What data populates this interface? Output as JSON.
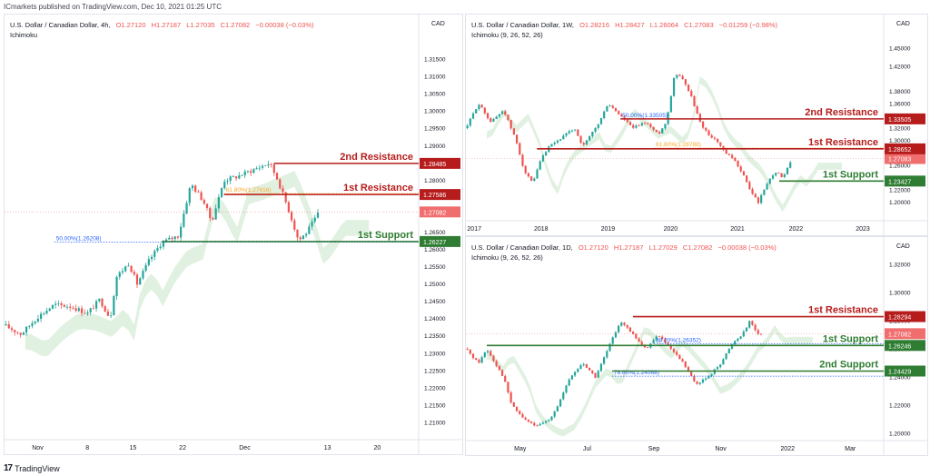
{
  "header": {
    "text": "ICmarkets published on TradingView.com, Dec 10, 2021 01:25 UTC"
  },
  "footer": {
    "brand": "TradingView",
    "logo_glyph": "17"
  },
  "colors": {
    "up": "#26a69a",
    "down": "#ef5350",
    "resistance": "#b71c1c",
    "support": "#2e7d32",
    "cloud_up": "#c8e6c9",
    "cloud_down": "#ffcdd2",
    "fib": "#2962ff",
    "fib_orange": "#f9a825"
  },
  "chart_data": [
    {
      "id": "h4",
      "type": "candlestick",
      "title": "U.S. Dollar / Canadian Dollar, 4h,",
      "ohlc": {
        "o": "O1.27120",
        "h": "H1.27187",
        "l": "L1.27035",
        "c": "C1.27082",
        "chg": "−0.00038 (−0.03%)"
      },
      "indicator": "Ichimoku",
      "currency": "CAD",
      "ylim": [
        1.205,
        1.32
      ],
      "y_ticks": [
        "1.31500",
        "1.31000",
        "1.30500",
        "1.30000",
        "1.29500",
        "1.29000",
        "1.28500",
        "1.28000",
        "1.27500",
        "1.27000",
        "1.26500",
        "1.26000",
        "1.25500",
        "1.25000",
        "1.24500",
        "1.24000",
        "1.23500",
        "1.23000",
        "1.22500",
        "1.22000",
        "1.21500",
        "1.21000"
      ],
      "x_ticks": [
        "Nov",
        "8",
        "15",
        "22",
        "Dec",
        "13",
        "20"
      ],
      "x_tick_pos": [
        0.08,
        0.2,
        0.31,
        0.43,
        0.58,
        0.78,
        0.9
      ],
      "path": [
        [
          0,
          1.238
        ],
        [
          0.04,
          1.2355
        ],
        [
          0.08,
          1.2405
        ],
        [
          0.12,
          1.244
        ],
        [
          0.16,
          1.2435
        ],
        [
          0.2,
          1.2415
        ],
        [
          0.23,
          1.2455
        ],
        [
          0.255,
          1.24
        ],
        [
          0.27,
          1.252
        ],
        [
          0.3,
          1.256
        ],
        [
          0.32,
          1.25
        ],
        [
          0.35,
          1.257
        ],
        [
          0.38,
          1.262
        ],
        [
          0.42,
          1.264
        ],
        [
          0.45,
          1.279
        ],
        [
          0.48,
          1.274
        ],
        [
          0.5,
          1.268
        ],
        [
          0.53,
          1.28
        ],
        [
          0.56,
          1.281
        ],
        [
          0.6,
          1.283
        ],
        [
          0.64,
          1.285
        ],
        [
          0.66,
          1.28
        ],
        [
          0.69,
          1.27
        ],
        [
          0.71,
          1.2625
        ],
        [
          0.73,
          1.265
        ],
        [
          0.76,
          1.2708
        ]
      ],
      "levels": [
        {
          "label": "2nd Resistance",
          "value": 1.28485,
          "tag": "1.28485",
          "kind": "resistance",
          "x0": 0.65
        },
        {
          "label": "1st Resistance",
          "value": 1.27586,
          "tag": "1.27586",
          "kind": "resistance",
          "x0": 0.53
        },
        {
          "label": "1st Support",
          "value": 1.26227,
          "tag": "1.26227",
          "kind": "support",
          "x0": 0.38
        }
      ],
      "fibs": [
        {
          "text": "61.80%(1.27616)",
          "value": 1.27616,
          "x0": 0.53,
          "color": "orange"
        },
        {
          "text": "50.00%(1.26208)",
          "value": 1.26208,
          "x0": 0.12,
          "color": "blue"
        }
      ],
      "current": {
        "value": 1.27082,
        "tag": "1.27082"
      }
    },
    {
      "id": "w1",
      "type": "candlestick",
      "title": "U.S. Dollar / Canadian Dollar, 1W,",
      "ohlc": {
        "o": "O1.28216",
        "h": "H1.28427",
        "l": "L1.26064",
        "c": "C1.27083",
        "chg": "−0.01259 (−0.98%)"
      },
      "indicator": "Ichimoku (9, 26, 52, 26)",
      "currency": "CAD",
      "ylim": [
        1.17,
        1.46
      ],
      "y_ticks": [
        "1.45000",
        "1.42000",
        "1.38000",
        "1.36000",
        "1.34000",
        "1.32000",
        "1.30000",
        "1.28000",
        "1.26000",
        "1.24000",
        "1.22000",
        "1.20000"
      ],
      "x_ticks": [
        "2017",
        "2018",
        "2019",
        "2020",
        "2021",
        "2022",
        "2023"
      ],
      "x_tick_pos": [
        0.02,
        0.18,
        0.34,
        0.49,
        0.65,
        0.79,
        0.95
      ],
      "path": [
        [
          0,
          1.32
        ],
        [
          0.03,
          1.36
        ],
        [
          0.06,
          1.33
        ],
        [
          0.09,
          1.35
        ],
        [
          0.12,
          1.3
        ],
        [
          0.14,
          1.25
        ],
        [
          0.16,
          1.23
        ],
        [
          0.18,
          1.27
        ],
        [
          0.2,
          1.29
        ],
        [
          0.22,
          1.3
        ],
        [
          0.24,
          1.31
        ],
        [
          0.26,
          1.32
        ],
        [
          0.28,
          1.29
        ],
        [
          0.3,
          1.31
        ],
        [
          0.32,
          1.33
        ],
        [
          0.34,
          1.36
        ],
        [
          0.37,
          1.34
        ],
        [
          0.4,
          1.32
        ],
        [
          0.43,
          1.33
        ],
        [
          0.46,
          1.31
        ],
        [
          0.48,
          1.33
        ],
        [
          0.5,
          1.41
        ],
        [
          0.52,
          1.4
        ],
        [
          0.54,
          1.37
        ],
        [
          0.56,
          1.33
        ],
        [
          0.58,
          1.31
        ],
        [
          0.6,
          1.3
        ],
        [
          0.62,
          1.28
        ],
        [
          0.64,
          1.27
        ],
        [
          0.66,
          1.25
        ],
        [
          0.68,
          1.22
        ],
        [
          0.7,
          1.2
        ],
        [
          0.72,
          1.23
        ],
        [
          0.74,
          1.25
        ],
        [
          0.76,
          1.24
        ],
        [
          0.78,
          1.27
        ]
      ],
      "levels": [
        {
          "label": "2nd Resistance",
          "value": 1.33505,
          "tag": "1.33505",
          "kind": "resistance",
          "x0": 0.37
        },
        {
          "label": "1st Resistance",
          "value": 1.28652,
          "tag": "1.28652",
          "kind": "resistance",
          "x0": 0.17
        },
        {
          "label": "1st Support",
          "value": 1.23427,
          "tag": "1.23427",
          "kind": "support",
          "x0": 0.75
        }
      ],
      "fibs": [
        {
          "text": "50.00%(1.33505)",
          "value": 1.33505,
          "x0": 0.37,
          "color": "blue"
        },
        {
          "text": "61.80%(1.28788)",
          "value": 1.28788,
          "x0": 0.45,
          "color": "orange"
        }
      ],
      "current": {
        "value": 1.27083,
        "tag": "1.27083"
      }
    },
    {
      "id": "d1",
      "type": "candlestick",
      "title": "U.S. Dollar / Canadian Dollar, 1D,",
      "ohlc": {
        "o": "O1.27120",
        "h": "H1.27187",
        "l": "L1.27029",
        "c": "C1.27082",
        "chg": "−0.00038 (−0.03%)"
      },
      "indicator": "Ichimoku (9, 26, 52, 26)",
      "currency": "CAD",
      "ylim": [
        1.195,
        1.32
      ],
      "y_ticks": [
        "1.32000",
        "1.30000",
        "1.28000",
        "1.26000",
        "1.24000",
        "1.22000",
        "1.20000"
      ],
      "x_ticks": [
        "May",
        "Jul",
        "Sep",
        "Nov",
        "2022",
        "Mar"
      ],
      "x_tick_pos": [
        0.13,
        0.29,
        0.45,
        0.61,
        0.77,
        0.92
      ],
      "path": [
        [
          0,
          1.26
        ],
        [
          0.03,
          1.25
        ],
        [
          0.05,
          1.26
        ],
        [
          0.07,
          1.25
        ],
        [
          0.09,
          1.24
        ],
        [
          0.11,
          1.22
        ],
        [
          0.14,
          1.21
        ],
        [
          0.17,
          1.205
        ],
        [
          0.2,
          1.21
        ],
        [
          0.22,
          1.22
        ],
        [
          0.25,
          1.24
        ],
        [
          0.28,
          1.25
        ],
        [
          0.31,
          1.24
        ],
        [
          0.34,
          1.26
        ],
        [
          0.37,
          1.28
        ],
        [
          0.4,
          1.27
        ],
        [
          0.43,
          1.26
        ],
        [
          0.46,
          1.27
        ],
        [
          0.49,
          1.26
        ],
        [
          0.52,
          1.25
        ],
        [
          0.55,
          1.235
        ],
        [
          0.58,
          1.24
        ],
        [
          0.61,
          1.25
        ],
        [
          0.64,
          1.265
        ],
        [
          0.66,
          1.27
        ],
        [
          0.68,
          1.28
        ],
        [
          0.7,
          1.27
        ],
        [
          0.71,
          1.271
        ]
      ],
      "levels": [
        {
          "label": "1st Resistance",
          "value": 1.28294,
          "tag": "1.28294",
          "kind": "resistance",
          "x0": 0.4
        },
        {
          "label": "1st Support",
          "value": 1.26246,
          "tag": "1.26246",
          "kind": "support",
          "x0": 0.05
        },
        {
          "label": "2nd Support",
          "value": 1.24429,
          "tag": "1.24429",
          "kind": "support",
          "x0": 0.35
        }
      ],
      "fibs": [
        {
          "text": "38.20%(1.26352)",
          "value": 1.26352,
          "x0": 0.45,
          "color": "blue"
        },
        {
          "text": "78.60%(1.24068)",
          "value": 1.24068,
          "x0": 0.35,
          "color": "blue"
        }
      ],
      "current": {
        "value": 1.27082,
        "tag": "1.27082"
      }
    }
  ]
}
